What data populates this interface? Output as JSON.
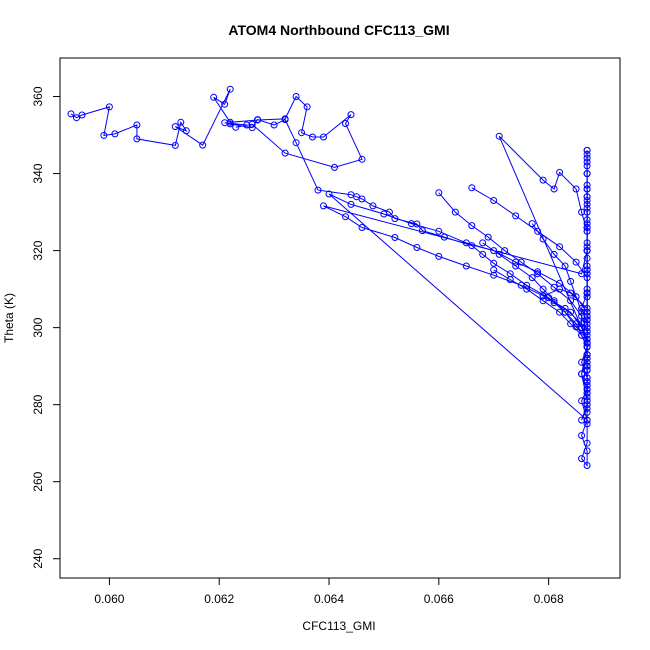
{
  "chart_data": {
    "type": "scatter",
    "title": "ATOM4 Northbound CFC113_GMI",
    "xlabel": "CFC113_GMI",
    "ylabel": "Theta (K)",
    "xlim": [
      0.0591,
      0.0693
    ],
    "ylim": [
      235,
      370
    ],
    "xticks": [
      "0.060",
      "0.062",
      "0.064",
      "0.066",
      "0.068"
    ],
    "yticks": [
      "240",
      "260",
      "280",
      "300",
      "320",
      "340",
      "360"
    ],
    "grid": false,
    "legend": "none",
    "series": [
      {
        "style": "line+points",
        "x": [
          0.0593,
          0.0594,
          0.0595,
          0.06,
          0.0599,
          0.0601,
          0.0605,
          0.0605,
          0.0612,
          0.0613,
          0.0614,
          0.0612,
          0.0617,
          0.0622,
          0.0621,
          0.0619,
          0.0622,
          0.0627,
          0.0632,
          0.0634,
          0.0636,
          0.0635,
          0.0637,
          0.0639,
          0.0644,
          0.0643,
          0.0646,
          0.0641,
          0.0632,
          0.0626,
          0.0623,
          0.0625,
          0.0621,
          0.0622,
          0.0626,
          0.0627,
          0.063,
          0.0632,
          0.0634,
          0.0638,
          0.0644,
          0.0645,
          0.0646,
          0.0648,
          0.0651,
          0.0652,
          0.0656,
          0.0657,
          0.0661,
          0.0666,
          0.0668,
          0.067,
          0.0673,
          0.0676,
          0.068,
          0.0683,
          0.0685,
          0.0687,
          0.0686,
          0.0684,
          0.0681,
          0.0679,
          0.0682,
          0.0684,
          0.0687,
          0.0687,
          0.0686,
          0.0671,
          0.0679,
          0.0681,
          0.0682,
          0.0685,
          0.0686,
          0.0687,
          0.0687,
          0.0686,
          0.0639,
          0.0643,
          0.0646,
          0.0652,
          0.0656,
          0.066,
          0.0665,
          0.067,
          0.0675,
          0.0679,
          0.0683,
          0.0686,
          0.0687,
          0.0687,
          0.0687,
          0.0686,
          0.0687,
          0.064,
          0.0644,
          0.065,
          0.0655,
          0.066,
          0.0665,
          0.067,
          0.0674,
          0.0678,
          0.0682,
          0.0685,
          0.0687,
          0.0687,
          0.0687,
          0.0687,
          0.0686,
          0.0687,
          0.0687,
          0.0687,
          0.0686,
          0.0687,
          0.0687,
          0.0686,
          0.0687,
          0.0687,
          0.0687,
          0.0686,
          0.0687,
          0.0687,
          0.0687,
          0.0687,
          0.0687,
          0.0687,
          0.0687,
          0.0687,
          0.0687,
          0.0687
        ],
        "y": [
          355.5,
          354.5,
          355.2,
          357.3,
          349.9,
          350.3,
          352.6,
          349.0,
          347.3,
          353.3,
          351.1,
          352.2,
          347.4,
          361.9,
          358.0,
          359.8,
          353.3,
          353.9,
          354.2,
          360.0,
          357.3,
          350.6,
          349.5,
          349.5,
          355.3,
          353.0,
          343.7,
          341.6,
          345.3,
          352.8,
          352.0,
          352.6,
          353.2,
          352.9,
          351.9,
          354.0,
          352.6,
          354.0,
          348.0,
          335.7,
          334.5,
          334.0,
          333.4,
          331.6,
          330.0,
          328.3,
          326.9,
          325.2,
          323.5,
          321.3,
          319.0,
          316.7,
          314.0,
          311.0,
          307.8,
          304.0,
          300.2,
          297.0,
          300.0,
          304.0,
          306.5,
          308.2,
          310.0,
          309.0,
          305.0,
          302.0,
          300.0,
          349.7,
          338.3,
          336.0,
          340.3,
          336.0,
          330.0,
          325.0,
          320.0,
          314.0,
          331.6,
          328.8,
          326.0,
          323.4,
          320.8,
          318.5,
          316.0,
          313.6,
          311.0,
          308.3,
          305.0,
          301.0,
          296.0,
          290.0,
          284.0,
          281.0,
          276.0,
          334.7,
          332.0,
          329.5,
          327.0,
          325.0,
          322.0,
          320.0,
          317.0,
          314.5,
          311.5,
          308.0,
          304.0,
          300.0,
          296.0,
          292.0,
          288.0,
          284.0,
          280.0,
          276.0,
          272.0,
          268.0,
          264.2,
          266.0,
          270.0,
          275.0,
          281.0,
          288.0,
          295.0,
          302.0,
          309.0,
          316.0,
          322.0,
          328.0,
          334.0,
          340.0,
          344.0,
          346.0
        ]
      },
      {
        "style": "line+points",
        "x": [
          0.066,
          0.0663,
          0.0666,
          0.0669,
          0.0672,
          0.0675,
          0.0678,
          0.0681,
          0.0684,
          0.0686,
          0.0687,
          0.0687,
          0.0686,
          0.0687,
          0.0687,
          0.0687,
          0.0686,
          0.0687,
          0.0687,
          0.0687,
          0.0687,
          0.0687,
          0.0687,
          0.0687,
          0.0687,
          0.0687,
          0.0687,
          0.0687,
          0.0687,
          0.0687,
          0.0687,
          0.0687
        ],
        "y": [
          335.0,
          330.0,
          326.5,
          323.5,
          320.0,
          317.0,
          314.0,
          310.5,
          307.0,
          303.0,
          299.0,
          295.0,
          291.0,
          287.0,
          283.0,
          279.0,
          276.0,
          280.0,
          285.0,
          290.0,
          296.0,
          302.0,
          308.0,
          314.0,
          320.0,
          326.0,
          331.0,
          336.0,
          340.0,
          343.0,
          345.0,
          346.0
        ]
      },
      {
        "style": "line+points",
        "x": [
          0.0666,
          0.067,
          0.0674,
          0.0678,
          0.0682,
          0.0685,
          0.0687,
          0.0687,
          0.0686,
          0.0687,
          0.0687,
          0.0687,
          0.0687,
          0.0687,
          0.0687,
          0.0687,
          0.0687,
          0.0687,
          0.0687,
          0.0687,
          0.0687,
          0.0687,
          0.0687,
          0.0687
        ],
        "y": [
          336.3,
          333.0,
          329.0,
          325.0,
          321.0,
          317.0,
          313.0,
          309.0,
          305.0,
          301.0,
          297.0,
          293.0,
          289.0,
          285.0,
          281.0,
          278.0,
          283.0,
          289.0,
          296.0,
          303.0,
          310.0,
          318.0,
          326.0,
          334.0
        ]
      },
      {
        "style": "line+points",
        "x": [
          0.0677,
          0.0679,
          0.0681,
          0.0683,
          0.0684,
          0.0685,
          0.0686,
          0.0686,
          0.0687,
          0.0687,
          0.0687,
          0.0687,
          0.0687,
          0.0687,
          0.0687,
          0.0687,
          0.0687,
          0.0687,
          0.0687,
          0.0687,
          0.0687,
          0.0687,
          0.0687,
          0.0687,
          0.0687
        ],
        "y": [
          327.0,
          323.0,
          319.0,
          316.0,
          312.0,
          308.0,
          304.0,
          300.0,
          296.0,
          293.0,
          290.0,
          287.0,
          284.0,
          282.0,
          286.0,
          291.0,
          296.0,
          302.0,
          308.0,
          314.0,
          320.0,
          326.0,
          332.0,
          337.0,
          342.0
        ]
      },
      {
        "style": "line+points",
        "x": [
          0.0668,
          0.0671,
          0.0674,
          0.0677,
          0.0679,
          0.0681,
          0.0683,
          0.0685,
          0.0686,
          0.0687,
          0.0687,
          0.0687,
          0.0687,
          0.0687,
          0.0687,
          0.0687,
          0.0687,
          0.0687,
          0.0687,
          0.0687,
          0.0687,
          0.0687
        ],
        "y": [
          322.0,
          319.0,
          316.0,
          313.0,
          310.0,
          307.0,
          304.0,
          301.0,
          298.0,
          295.0,
          292.0,
          289.0,
          286.0,
          289.0,
          293.0,
          298.0,
          303.0,
          309.0,
          315.0,
          321.0,
          327.0,
          333.0
        ]
      },
      {
        "style": "line+points",
        "x": [
          0.067,
          0.0673,
          0.0676,
          0.0679,
          0.0682,
          0.0684,
          0.0686,
          0.0687,
          0.0687,
          0.0687,
          0.0687,
          0.0687,
          0.0687,
          0.0687,
          0.0687,
          0.0687,
          0.0687,
          0.0687
        ],
        "y": [
          315.0,
          312.5,
          310.0,
          307.0,
          304.0,
          301.0,
          298.0,
          295.0,
          292.0,
          295.0,
          299.0,
          304.0,
          309.0,
          315.0,
          320.0,
          325.0,
          330.0,
          336.0
        ]
      }
    ]
  }
}
